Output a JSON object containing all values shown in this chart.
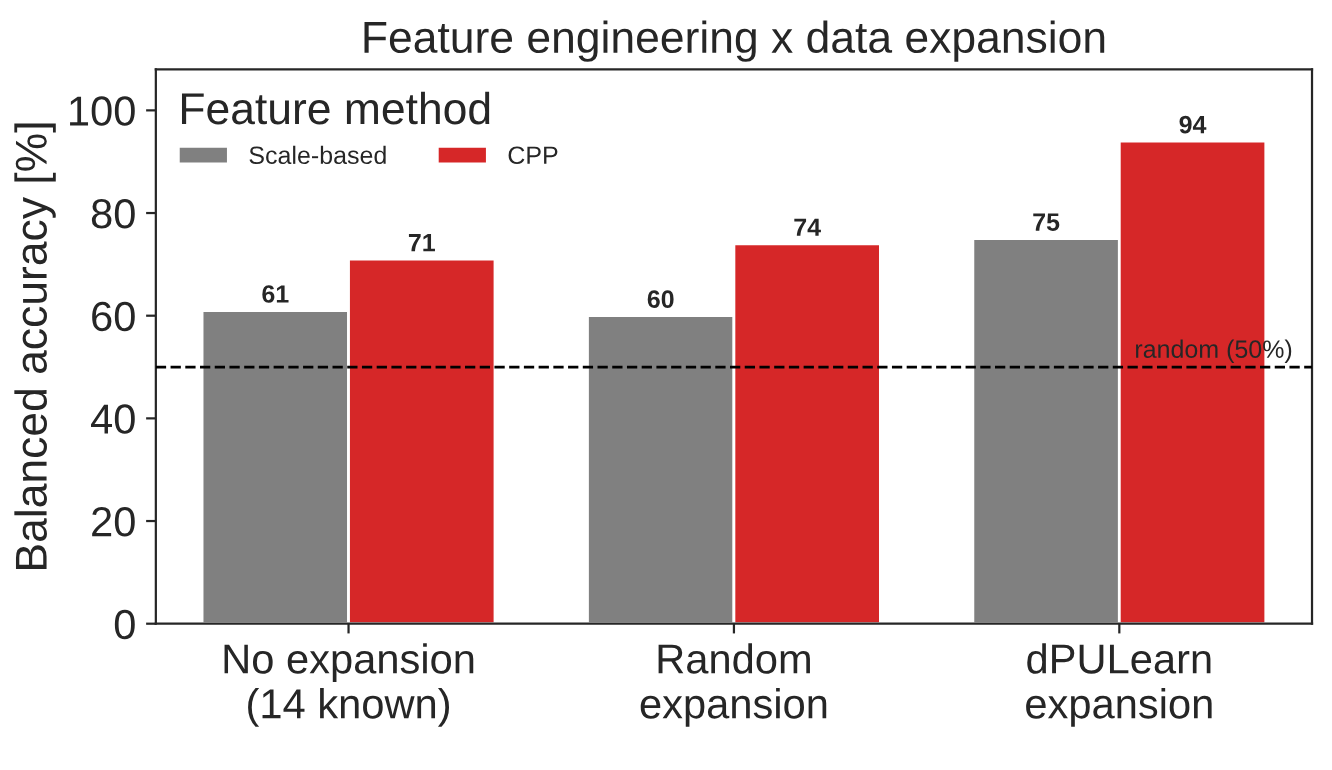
{
  "chart_data": {
    "type": "bar",
    "title": "Feature engineering x data expansion",
    "ylabel": "Balanced accuracy [%]",
    "legend_title": "Feature method",
    "categories": [
      "No expansion\n(14 known)",
      "Random\nexpansion",
      "dPULearn\nexpansion"
    ],
    "series": [
      {
        "name": "Scale-based",
        "color": "#808080",
        "values": [
          61,
          60,
          75
        ]
      },
      {
        "name": "CPP",
        "color": "#d62728",
        "values": [
          71,
          74,
          94
        ]
      }
    ],
    "ylim": [
      0,
      108
    ],
    "yticks": [
      0,
      20,
      40,
      60,
      80,
      100
    ],
    "data_labels": true,
    "legend": "top left",
    "grid": false,
    "ref_lines": [
      {
        "axis": "y",
        "value": 50,
        "label": "random (50%)",
        "color": "#000000",
        "line_style": "dashed"
      }
    ]
  }
}
